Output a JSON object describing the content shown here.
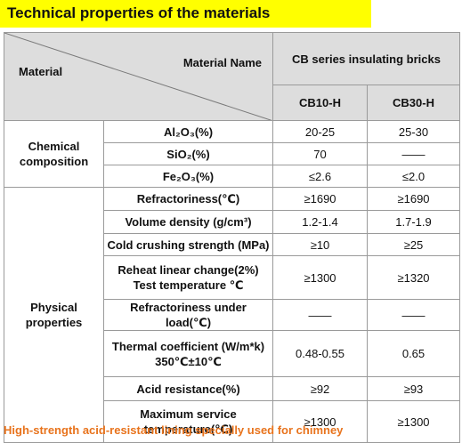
{
  "title": "Technical properties of the materials",
  "header": {
    "material_label": "Material",
    "name_label": "Material Name",
    "series_label": "CB series insulating bricks",
    "columns": [
      "CB10-H",
      "CB30-H"
    ]
  },
  "chemical": {
    "group": "Chemical composition",
    "rows": [
      {
        "name": "Al₂O₃(%)",
        "cb10": "20-25",
        "cb30": "25-30"
      },
      {
        "name": "SiO₂(%)",
        "cb10": "70",
        "cb30": "——"
      },
      {
        "name": "Fe₂O₃(%)",
        "cb10": "≤2.6",
        "cb30": "≤2.0"
      }
    ]
  },
  "physical": {
    "group": "Physical properties",
    "rows": [
      {
        "name": "Refractoriness(℃)",
        "cb10": "≥1690",
        "cb30": "≥1690"
      },
      {
        "name": "Volume density (g/cm³)",
        "cb10": "1.2-1.4",
        "cb30": "1.7-1.9"
      },
      {
        "name": "Cold crushing strength (MPa)",
        "cb10": "≥10",
        "cb30": "≥25"
      },
      {
        "name": "Reheat linear change(2%) Test temperature ℃",
        "cb10": "≥1300",
        "cb30": "≥1320"
      },
      {
        "name": "Refractoriness under load(℃)",
        "cb10": "——",
        "cb30": "——"
      },
      {
        "name": "Thermal coefficient (W/m*k) 350℃±10℃",
        "cb10": "0.48-0.55",
        "cb30": "0.65"
      },
      {
        "name": "Acid resistance(%)",
        "cb10": "≥92",
        "cb30": "≥93"
      },
      {
        "name": "Maximum service temperature(℃)",
        "cb10": "≥1300",
        "cb30": "≥1300"
      }
    ]
  },
  "footer_note": "High-strength acid-resistant lining specially used for chimney"
}
